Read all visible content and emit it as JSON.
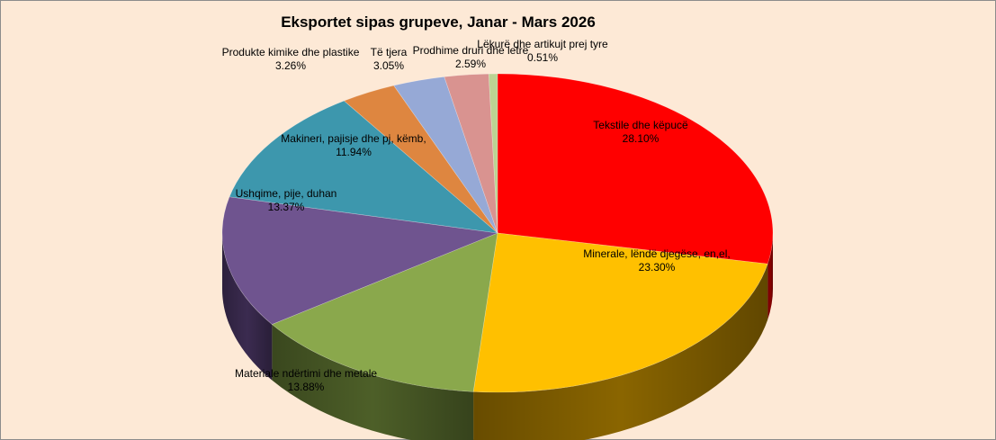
{
  "chart_data": {
    "type": "pie",
    "title": "Eksportet sipas grupeve, Janar - Mars 2026",
    "slices": [
      {
        "name": "Tekstile dhe këpucë",
        "value": 28.1,
        "label": "28.10%",
        "color": "#ff0000",
        "side": "#8c0000"
      },
      {
        "name": "Minerale, lëndë djegëse, en,el,",
        "value": 23.3,
        "label": "23.30%",
        "color": "#ffc000",
        "side": "#8a6500"
      },
      {
        "name": "Materiale ndërtimi dhe metale",
        "value": 13.88,
        "label": "13.88%",
        "color": "#8aa84c",
        "side": "#4d5f28"
      },
      {
        "name": "Ushqime, pije, duhan",
        "value": 13.37,
        "label": "13.37%",
        "color": "#6f548f",
        "side": "#3b2b50"
      },
      {
        "name": "Makineri, pajisje dhe pj, këmb,",
        "value": 11.94,
        "label": "11.94%",
        "color": "#3d97ad",
        "side": "#1f5362"
      },
      {
        "name": "Produkte kimike dhe plastike",
        "value": 3.26,
        "label": "3.26%",
        "color": "#de8640",
        "side": "#7a4518"
      },
      {
        "name": "Të tjera",
        "value": 3.05,
        "label": "3.05%",
        "color": "#96a9d6",
        "side": "#4e5e80"
      },
      {
        "name": "Prodhime druri dhe letre",
        "value": 2.59,
        "label": "2.59%",
        "color": "#d99390",
        "side": "#7a4b49"
      },
      {
        "name": "Lëkurë dhe artikujt prej tyre",
        "value": 0.51,
        "label": "0.51%",
        "color": "#bcd393",
        "side": "#6a7b48"
      }
    ]
  }
}
